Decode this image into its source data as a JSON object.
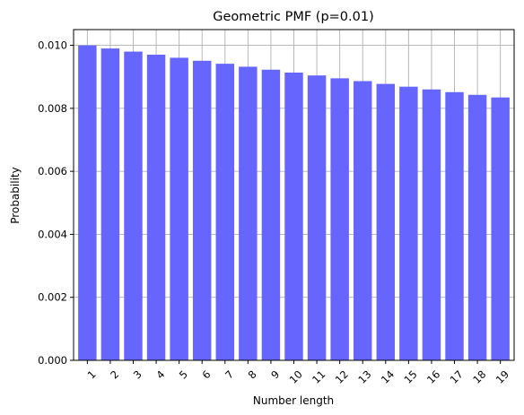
{
  "chart_data": {
    "type": "bar",
    "title": "Geometric PMF (p=0.01)",
    "xlabel": "Number length",
    "ylabel": "Probability",
    "categories": [
      "1",
      "2",
      "3",
      "4",
      "5",
      "6",
      "7",
      "8",
      "9",
      "10",
      "11",
      "12",
      "13",
      "14",
      "15",
      "16",
      "17",
      "18",
      "19"
    ],
    "values": [
      0.01,
      0.0099,
      0.009801,
      0.009703,
      0.009606,
      0.00951,
      0.009415,
      0.009321,
      0.009227,
      0.009135,
      0.009044,
      0.008953,
      0.008864,
      0.008775,
      0.008687,
      0.0086,
      0.008514,
      0.008429,
      0.008345
    ],
    "ylim": [
      0,
      0.0105
    ],
    "yticks": [
      0.0,
      0.002,
      0.004,
      0.006,
      0.008,
      0.01
    ],
    "ytick_labels": [
      "0.000",
      "0.002",
      "0.004",
      "0.006",
      "0.008",
      "0.010"
    ],
    "grid": true,
    "bar_color": "#6666ff",
    "grid_color": "#b0b0b0"
  }
}
